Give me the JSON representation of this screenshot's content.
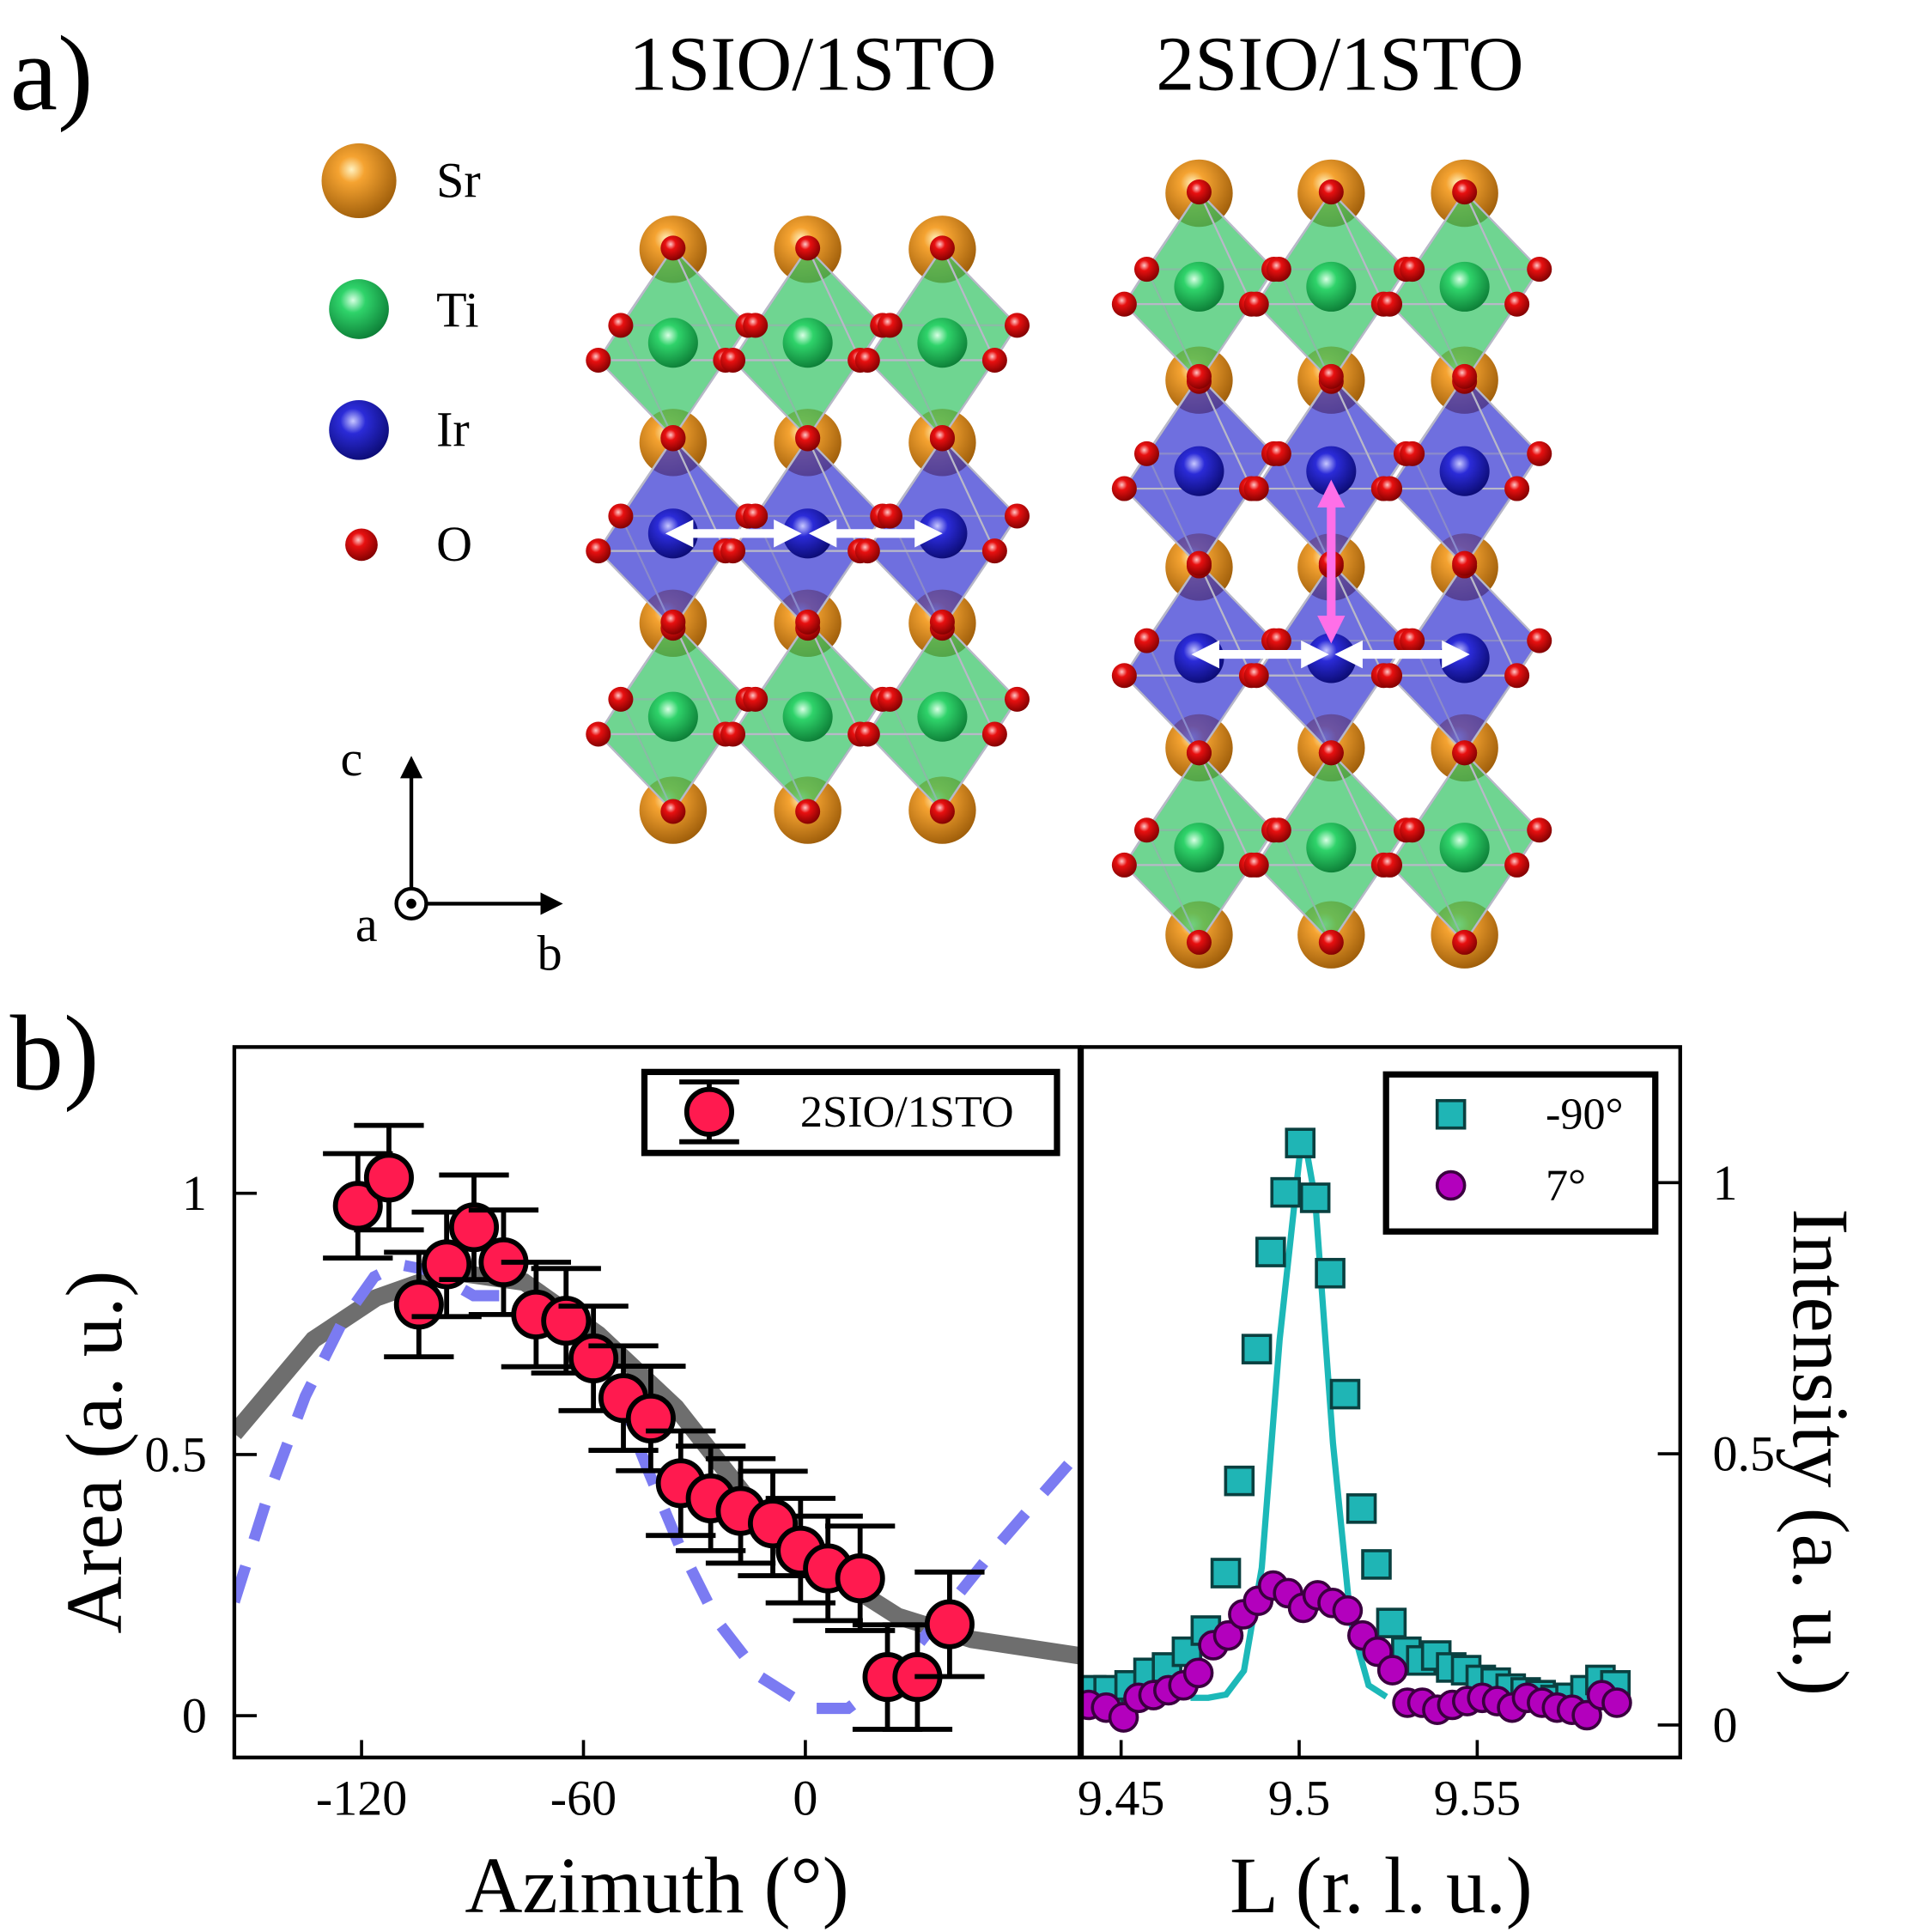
{
  "panel_labels": [
    "a)",
    "b)"
  ],
  "structure": {
    "titles": [
      {
        "text": "1SIO/1STO",
        "color": "#3333e6"
      },
      {
        "text": "2SIO/1STO",
        "color": "#f03a3a"
      }
    ],
    "legend": [
      "Sr",
      "Ti",
      "Ir",
      "O"
    ],
    "axes": [
      "c",
      "a",
      "b"
    ]
  },
  "chart_data": [
    {
      "type": "scatter",
      "xlabel": "Azimuth (°)",
      "ylabel": "Area (a. u.)",
      "xlim": [
        -154.4,
        74.1
      ],
      "ylim": [
        -0.08,
        1.28
      ],
      "xticks": [
        -120,
        -60,
        0
      ],
      "yticks": [
        0,
        0.5,
        1
      ],
      "legend": "upper right",
      "series": [
        {
          "name": "2SIO/1STO",
          "color": "#ff1a4f",
          "x": [
            -121.0,
            -112.6,
            -104.5,
            -97.0,
            -89.6,
            -81.6,
            -72.8,
            -64.7,
            -57.3,
            -49.2,
            -41.8,
            -33.7,
            -25.6,
            -17.5,
            -8.8,
            -1.3,
            6.1,
            14.8,
            22.2,
            30.3,
            39.0
          ],
          "values": [
            0.976,
            1.03,
            0.787,
            0.864,
            0.935,
            0.868,
            0.768,
            0.756,
            0.684,
            0.608,
            0.569,
            0.445,
            0.416,
            0.392,
            0.368,
            0.316,
            0.282,
            0.263,
            0.074,
            0.074,
            0.175
          ],
          "errors": [
            0.1,
            0.1,
            0.1,
            0.1,
            0.1,
            0.1,
            0.1,
            0.1,
            0.1,
            0.1,
            0.1,
            0.1,
            0.1,
            0.1,
            0.1,
            0.1,
            0.1,
            0.1,
            0.1,
            0.1,
            0.1
          ]
        },
        {
          "type": "line",
          "color": "#6e6e6e",
          "x": [
            -154.4,
            -133,
            -116,
            -96,
            -76,
            -56,
            -35,
            -15,
            5,
            25,
            45,
            74.1
          ],
          "values": [
            0.54,
            0.72,
            0.8,
            0.85,
            0.83,
            0.73,
            0.59,
            0.41,
            0.28,
            0.19,
            0.146,
            0.115
          ]
        },
        {
          "type": "line",
          "color": "#7b7bf2",
          "dash": true,
          "x": [
            -154.4,
            -145.3,
            -135.2,
            -125.0,
            -116.6,
            -109.9,
            -101.4,
            -89.7,
            -76.2,
            -59.3,
            -49.2,
            -42.5,
            -34.0,
            -23.9,
            -12.1,
            1.3,
            11.5,
            24.9,
            38.4,
            51.9,
            63.7,
            74.1
          ],
          "values": [
            0.218,
            0.421,
            0.612,
            0.756,
            0.84,
            0.864,
            0.852,
            0.804,
            0.804,
            0.708,
            0.589,
            0.469,
            0.325,
            0.182,
            0.074,
            0.014,
            0.014,
            0.086,
            0.206,
            0.325,
            0.421,
            0.505
          ]
        }
      ]
    },
    {
      "type": "scatter",
      "xlabel": "L (r. l. u.)",
      "ylabel": "Intensity (a. u.)",
      "y_axis_side": "right",
      "xlim": [
        9.439,
        9.607
      ],
      "ylim": [
        -0.06,
        1.25
      ],
      "xticks": [
        9.45,
        9.5,
        9.55
      ],
      "yticks": [
        0,
        0.5,
        1
      ],
      "legend": "upper right",
      "series": [
        {
          "type": "line",
          "color": "#1cb8b8",
          "x": [
            9.4695,
            9.4745,
            9.4795,
            9.4845,
            9.4895,
            9.4945,
            9.501,
            9.5045,
            9.5095,
            9.5145,
            9.5195,
            9.5245
          ],
          "values": [
            0.05,
            0.05,
            0.056,
            0.1,
            0.29,
            0.71,
            1.1,
            0.97,
            0.52,
            0.19,
            0.073,
            0.052
          ]
        },
        {
          "name": "-90°",
          "marker": "square",
          "color": "#1fb5b5",
          "x": [
            9.4416,
            9.4465,
            9.4524,
            9.4577,
            9.4629,
            9.4685,
            9.4738,
            9.4794,
            9.4832,
            9.4881,
            9.492,
            9.4962,
            9.5003,
            9.5045,
            9.5087,
            9.5129,
            9.5175,
            9.5217,
            9.5259,
            9.5301,
            9.5343,
            9.5385,
            9.5427,
            9.5469,
            9.551,
            9.5552,
            9.5594,
            9.5636,
            9.5678,
            9.572,
            9.5762,
            9.5804,
            9.5846,
            9.5888
          ],
          "values": [
            0.064,
            0.064,
            0.073,
            0.096,
            0.106,
            0.135,
            0.174,
            0.28,
            0.45,
            0.693,
            0.872,
            0.982,
            1.073,
            0.972,
            0.833,
            0.61,
            0.399,
            0.296,
            0.188,
            0.135,
            0.119,
            0.128,
            0.106,
            0.101,
            0.083,
            0.078,
            0.067,
            0.06,
            0.055,
            0.046,
            0.05,
            0.064,
            0.083,
            0.073
          ]
        },
        {
          "name": "7°",
          "marker": "circle",
          "color": "#b300bd",
          "x": [
            9.4409,
            9.4458,
            9.4507,
            9.4549,
            9.4591,
            9.4633,
            9.4675,
            9.4717,
            9.4759,
            9.4801,
            9.4843,
            9.4885,
            9.4927,
            9.4969,
            9.5011,
            9.5052,
            9.5094,
            9.5136,
            9.5178,
            9.522,
            9.5262,
            9.5304,
            9.5346,
            9.5388,
            9.543,
            9.5472,
            9.5514,
            9.5556,
            9.5598,
            9.564,
            9.5682,
            9.5724,
            9.5766,
            9.5808,
            9.585,
            9.5892
          ],
          "values": [
            0.037,
            0.032,
            0.014,
            0.05,
            0.055,
            0.064,
            0.073,
            0.096,
            0.147,
            0.165,
            0.204,
            0.229,
            0.257,
            0.243,
            0.216,
            0.239,
            0.225,
            0.211,
            0.165,
            0.135,
            0.101,
            0.041,
            0.041,
            0.028,
            0.037,
            0.044,
            0.05,
            0.044,
            0.032,
            0.05,
            0.041,
            0.032,
            0.028,
            0.018,
            0.055,
            0.041
          ]
        }
      ]
    }
  ]
}
